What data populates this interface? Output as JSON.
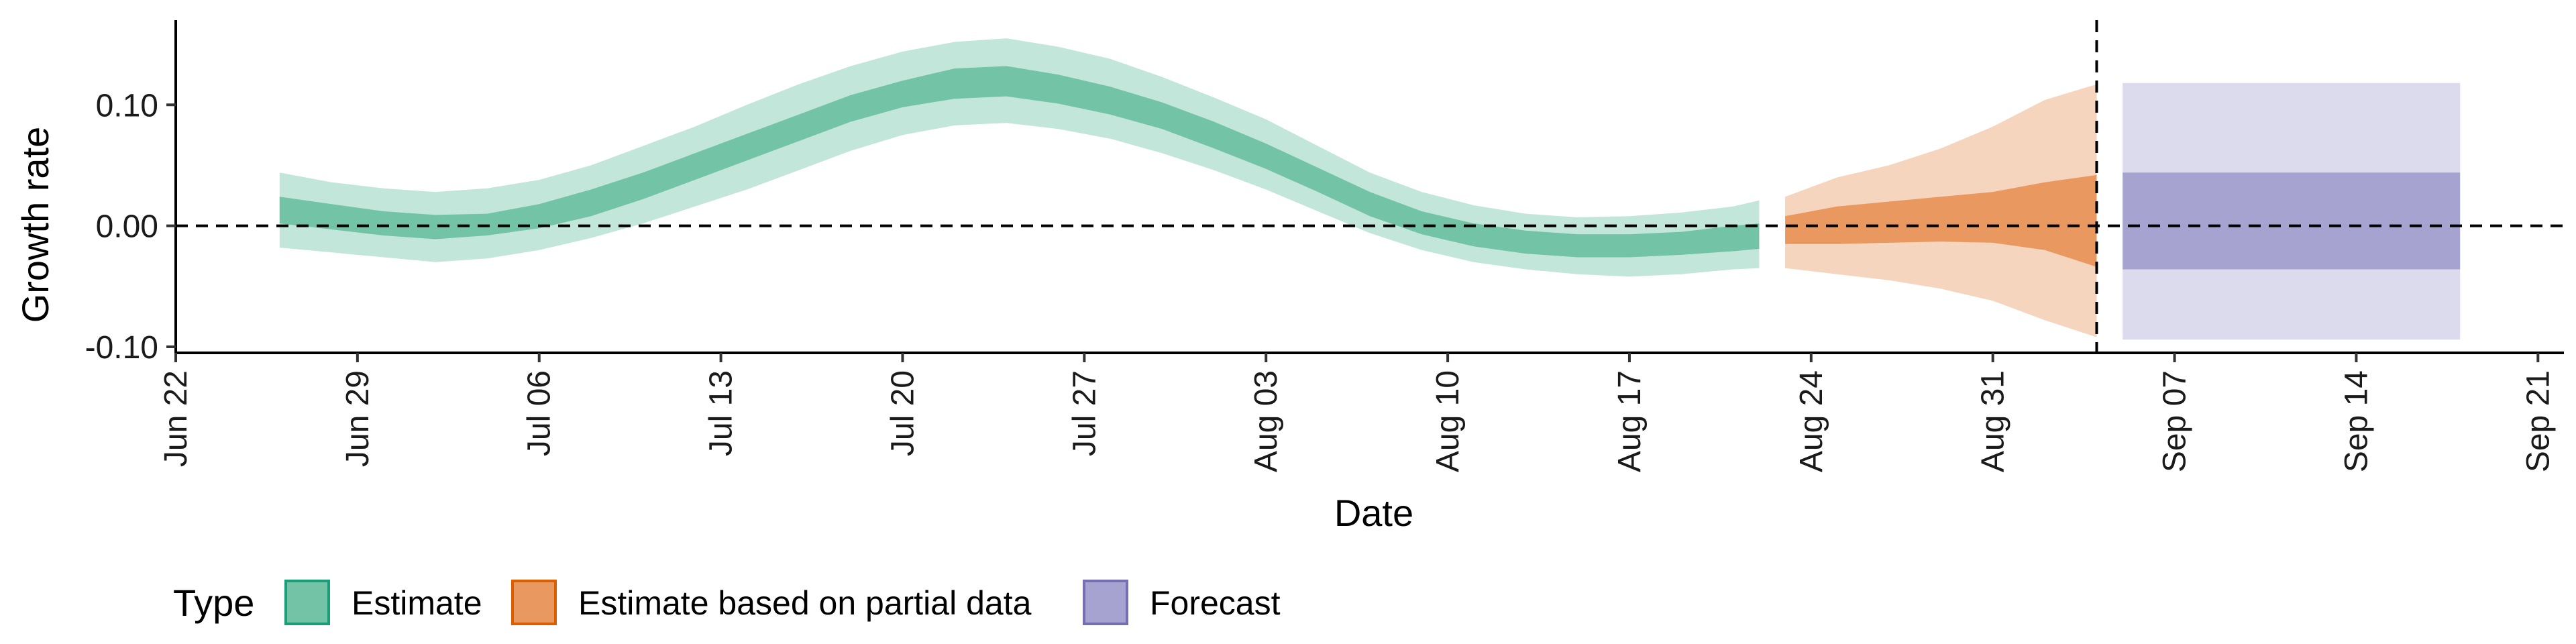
{
  "chart_data": {
    "type": "area",
    "xlabel": "Date",
    "ylabel": "Growth rate",
    "ylim": [
      -0.105,
      0.17
    ],
    "y_ticks": [
      {
        "value": -0.1,
        "label": "-0.10"
      },
      {
        "value": 0.0,
        "label": "0.00"
      },
      {
        "value": 0.1,
        "label": "0.10"
      }
    ],
    "x_range": [
      "2020-06-22",
      "2020-09-22"
    ],
    "x_ticks": [
      {
        "date": "2020-06-22",
        "label": "Jun 22"
      },
      {
        "date": "2020-06-29",
        "label": "Jun 29"
      },
      {
        "date": "2020-07-06",
        "label": "Jul 06"
      },
      {
        "date": "2020-07-13",
        "label": "Jul 13"
      },
      {
        "date": "2020-07-20",
        "label": "Jul 20"
      },
      {
        "date": "2020-07-27",
        "label": "Jul 27"
      },
      {
        "date": "2020-08-03",
        "label": "Aug 03"
      },
      {
        "date": "2020-08-10",
        "label": "Aug 10"
      },
      {
        "date": "2020-08-17",
        "label": "Aug 17"
      },
      {
        "date": "2020-08-24",
        "label": "Aug 24"
      },
      {
        "date": "2020-08-31",
        "label": "Aug 31"
      },
      {
        "date": "2020-09-07",
        "label": "Sep 07"
      },
      {
        "date": "2020-09-14",
        "label": "Sep 14"
      },
      {
        "date": "2020-09-21",
        "label": "Sep 21"
      }
    ],
    "reference_lines": [
      {
        "axis": "y",
        "value": 0.0,
        "style": "dashed"
      },
      {
        "axis": "x",
        "value": "2020-09-04",
        "style": "dashed"
      }
    ],
    "grid": false,
    "legend": {
      "title": "Type",
      "position": "bottom-left",
      "entries": [
        {
          "label": "Estimate",
          "fill": "#73c3a7",
          "stroke": "#1b9e77"
        },
        {
          "label": "Estimate based on partial data",
          "fill": "#e9995f",
          "stroke": "#d95f02"
        },
        {
          "label": "Forecast",
          "fill": "#a7a3d1",
          "stroke": "#7570b3"
        }
      ]
    },
    "series": [
      {
        "name": "Estimate",
        "colors": {
          "outer": "#c3e6da",
          "inner": "#73c3a7"
        },
        "points": [
          {
            "x": "2020-06-26",
            "lo90": -0.018,
            "lo50": 0.002,
            "hi50": 0.024,
            "hi90": 0.044
          },
          {
            "x": "2020-06-28",
            "lo90": -0.022,
            "lo50": -0.003,
            "hi50": 0.018,
            "hi90": 0.036
          },
          {
            "x": "2020-06-30",
            "lo90": -0.026,
            "lo50": -0.008,
            "hi50": 0.012,
            "hi90": 0.031
          },
          {
            "x": "2020-07-02",
            "lo90": -0.03,
            "lo50": -0.011,
            "hi50": 0.009,
            "hi90": 0.028
          },
          {
            "x": "2020-07-04",
            "lo90": -0.027,
            "lo50": -0.008,
            "hi50": 0.01,
            "hi90": 0.031
          },
          {
            "x": "2020-07-06",
            "lo90": -0.02,
            "lo50": -0.002,
            "hi50": 0.018,
            "hi90": 0.038
          },
          {
            "x": "2020-07-08",
            "lo90": -0.01,
            "lo50": 0.008,
            "hi50": 0.03,
            "hi90": 0.05
          },
          {
            "x": "2020-07-10",
            "lo90": 0.002,
            "lo50": 0.022,
            "hi50": 0.044,
            "hi90": 0.066
          },
          {
            "x": "2020-07-12",
            "lo90": 0.016,
            "lo50": 0.038,
            "hi50": 0.06,
            "hi90": 0.082
          },
          {
            "x": "2020-07-14",
            "lo90": 0.03,
            "lo50": 0.054,
            "hi50": 0.076,
            "hi90": 0.1
          },
          {
            "x": "2020-07-16",
            "lo90": 0.046,
            "lo50": 0.07,
            "hi50": 0.092,
            "hi90": 0.117
          },
          {
            "x": "2020-07-18",
            "lo90": 0.062,
            "lo50": 0.086,
            "hi50": 0.108,
            "hi90": 0.132
          },
          {
            "x": "2020-07-20",
            "lo90": 0.075,
            "lo50": 0.098,
            "hi50": 0.12,
            "hi90": 0.144
          },
          {
            "x": "2020-07-22",
            "lo90": 0.083,
            "lo50": 0.105,
            "hi50": 0.13,
            "hi90": 0.152
          },
          {
            "x": "2020-07-24",
            "lo90": 0.085,
            "lo50": 0.107,
            "hi50": 0.132,
            "hi90": 0.155
          },
          {
            "x": "2020-07-26",
            "lo90": 0.08,
            "lo50": 0.101,
            "hi50": 0.125,
            "hi90": 0.148
          },
          {
            "x": "2020-07-28",
            "lo90": 0.072,
            "lo50": 0.092,
            "hi50": 0.115,
            "hi90": 0.138
          },
          {
            "x": "2020-07-30",
            "lo90": 0.06,
            "lo50": 0.08,
            "hi50": 0.102,
            "hi90": 0.123
          },
          {
            "x": "2020-08-01",
            "lo90": 0.046,
            "lo50": 0.064,
            "hi50": 0.086,
            "hi90": 0.106
          },
          {
            "x": "2020-08-03",
            "lo90": 0.03,
            "lo50": 0.047,
            "hi50": 0.068,
            "hi90": 0.088
          },
          {
            "x": "2020-08-05",
            "lo90": 0.012,
            "lo50": 0.028,
            "hi50": 0.048,
            "hi90": 0.066
          },
          {
            "x": "2020-08-07",
            "lo90": -0.006,
            "lo50": 0.008,
            "hi50": 0.028,
            "hi90": 0.044
          },
          {
            "x": "2020-08-09",
            "lo90": -0.02,
            "lo50": -0.007,
            "hi50": 0.012,
            "hi90": 0.028
          },
          {
            "x": "2020-08-11",
            "lo90": -0.03,
            "lo50": -0.017,
            "hi50": 0.002,
            "hi90": 0.017
          },
          {
            "x": "2020-08-13",
            "lo90": -0.036,
            "lo50": -0.023,
            "hi50": -0.004,
            "hi90": 0.01
          },
          {
            "x": "2020-08-15",
            "lo90": -0.04,
            "lo50": -0.026,
            "hi50": -0.007,
            "hi90": 0.007
          },
          {
            "x": "2020-08-17",
            "lo90": -0.042,
            "lo50": -0.026,
            "hi50": -0.007,
            "hi90": 0.008
          },
          {
            "x": "2020-08-19",
            "lo90": -0.04,
            "lo50": -0.024,
            "hi50": -0.005,
            "hi90": 0.011
          },
          {
            "x": "2020-08-21",
            "lo90": -0.036,
            "lo50": -0.021,
            "hi50": 0.0,
            "hi90": 0.016
          },
          {
            "x": "2020-08-22",
            "lo90": -0.035,
            "lo50": -0.019,
            "hi50": 0.002,
            "hi90": 0.021
          }
        ]
      },
      {
        "name": "Estimate based on partial data",
        "colors": {
          "outer": "#f5d5bd",
          "inner": "#e9995f"
        },
        "points": [
          {
            "x": "2020-08-23",
            "lo90": -0.035,
            "lo50": -0.015,
            "hi50": 0.008,
            "hi90": 0.024
          },
          {
            "x": "2020-08-25",
            "lo90": -0.04,
            "lo50": -0.015,
            "hi50": 0.016,
            "hi90": 0.04
          },
          {
            "x": "2020-08-27",
            "lo90": -0.045,
            "lo50": -0.014,
            "hi50": 0.02,
            "hi90": 0.05
          },
          {
            "x": "2020-08-29",
            "lo90": -0.052,
            "lo50": -0.013,
            "hi50": 0.024,
            "hi90": 0.064
          },
          {
            "x": "2020-08-31",
            "lo90": -0.062,
            "lo50": -0.014,
            "hi50": 0.028,
            "hi90": 0.082
          },
          {
            "x": "2020-09-02",
            "lo90": -0.078,
            "lo50": -0.02,
            "hi50": 0.036,
            "hi90": 0.104
          },
          {
            "x": "2020-09-04",
            "lo90": -0.092,
            "lo50": -0.034,
            "hi50": 0.042,
            "hi90": 0.117
          }
        ]
      },
      {
        "name": "Forecast",
        "colors": {
          "outer": "#dcdbee",
          "inner": "#a7a3d1"
        },
        "points": [
          {
            "x": "2020-09-05",
            "lo90": -0.094,
            "lo50": -0.036,
            "hi50": 0.044,
            "hi90": 0.118
          },
          {
            "x": "2020-09-18",
            "lo90": -0.094,
            "lo50": -0.036,
            "hi50": 0.044,
            "hi90": 0.118
          }
        ]
      }
    ]
  }
}
